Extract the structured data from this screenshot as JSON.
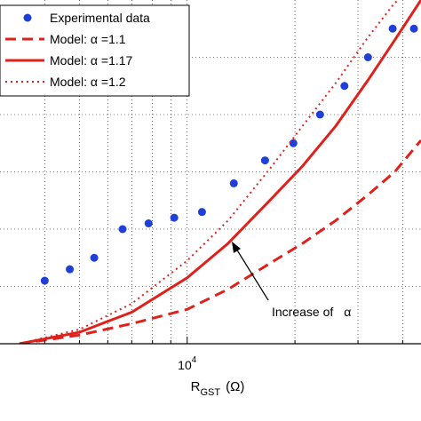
{
  "chart_data": {
    "type": "line",
    "x_scale": "log",
    "xlabel": {
      "main": "R",
      "sub": "GST",
      "unit": "(Ω)"
    },
    "x_ticks": [
      {
        "base": "10",
        "exp": "4",
        "value": 10000
      }
    ],
    "xlim": [
      3000,
      45000
    ],
    "ylim": [
      0,
      6
    ],
    "grid": true,
    "legend_position": "top-left",
    "series": [
      {
        "name": "Experimental data",
        "type": "scatter",
        "color": "#1f3fd6",
        "x": [
          4000,
          4700,
          5500,
          6600,
          7800,
          9200,
          11000,
          13500,
          16500,
          19800,
          23500,
          27500,
          32000,
          37500,
          43000
        ],
        "y": [
          1.1,
          1.3,
          1.5,
          2.0,
          2.1,
          2.2,
          2.3,
          2.8,
          3.2,
          3.5,
          4.0,
          4.5,
          5.0,
          5.5,
          5.5
        ]
      },
      {
        "name": "Model:  α =1.1",
        "style": "dashed",
        "color": "#e0201b",
        "x": [
          3400,
          5000,
          7000,
          10000,
          13000,
          17000,
          21000,
          26000,
          32000,
          38000,
          45000
        ],
        "y": [
          0.0,
          0.15,
          0.35,
          0.6,
          0.95,
          1.4,
          1.75,
          2.15,
          2.6,
          3.0,
          3.55
        ]
      },
      {
        "name": "Model:  α =1.17",
        "style": "solid",
        "color": "#e0201b",
        "x": [
          3400,
          5000,
          7000,
          10000,
          13000,
          17000,
          21000,
          26000,
          32000,
          38000,
          45000
        ],
        "y": [
          0.0,
          0.2,
          0.55,
          1.15,
          1.75,
          2.5,
          3.1,
          3.8,
          4.6,
          5.3,
          6.0
        ]
      },
      {
        "name": "Model:  α =1.2",
        "style": "dotted",
        "color": "#e0201b",
        "x": [
          3400,
          5000,
          7000,
          10000,
          13000,
          17000,
          21000,
          26000,
          32000,
          38000,
          45000
        ],
        "y": [
          0.0,
          0.25,
          0.7,
          1.45,
          2.15,
          3.05,
          3.8,
          4.55,
          5.35,
          5.95,
          6.3
        ]
      }
    ],
    "annotation": {
      "text": "Increase of",
      "symbol": "α",
      "arrow_to": {
        "x": 10800,
        "y": 1.8
      }
    }
  },
  "colors": {
    "experimental": "#1f3fd6",
    "model": "#e0201b",
    "grid": "#000000"
  }
}
